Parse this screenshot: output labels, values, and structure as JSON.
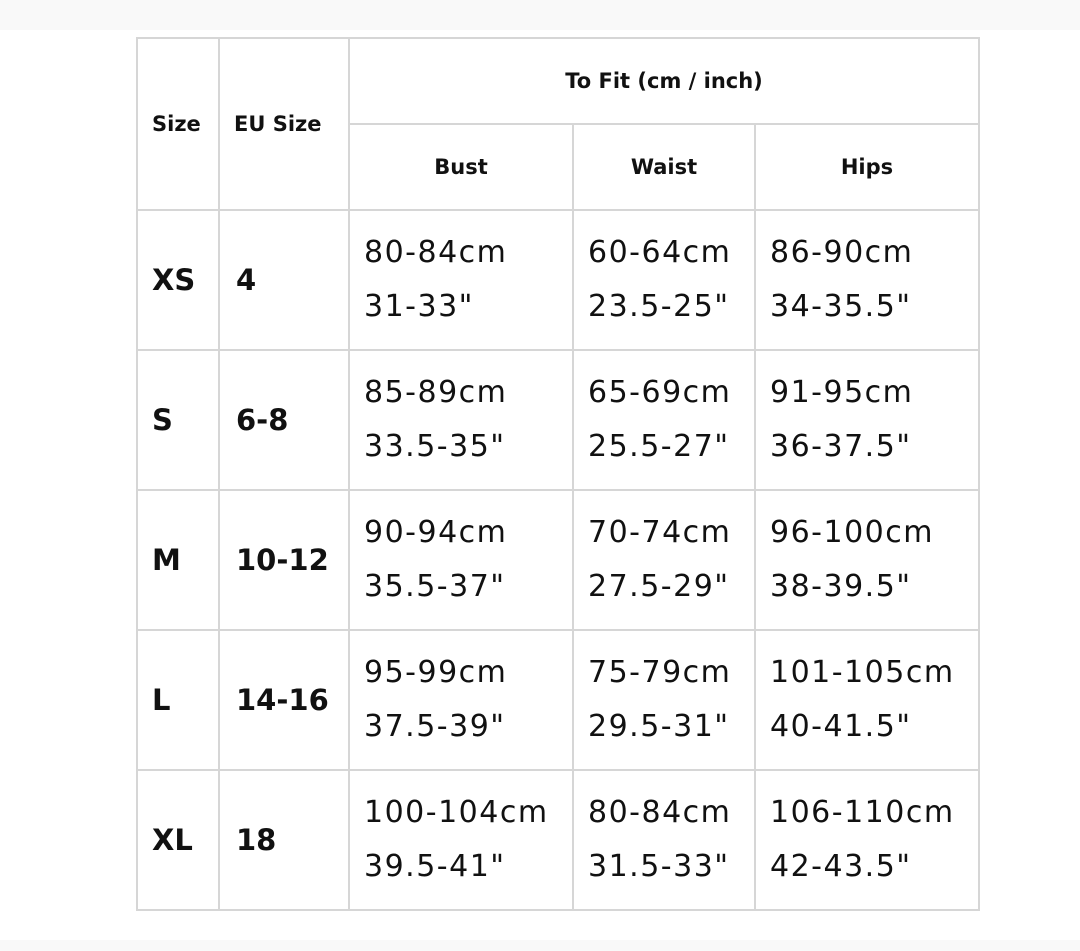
{
  "header": {
    "size": "Size",
    "eu_size": "EU Size",
    "to_fit": "To Fit (cm / inch)",
    "bust": "Bust",
    "waist": "Waist",
    "hips": "Hips"
  },
  "rows": [
    {
      "size": "XS",
      "eu": "4",
      "bust_cm": "80-84cm",
      "bust_in": "31-33\"",
      "waist_cm": "60-64cm",
      "waist_in": "23.5-25\"",
      "hips_cm": "86-90cm",
      "hips_in": "34-35.5\""
    },
    {
      "size": "S",
      "eu": "6-8",
      "bust_cm": "85-89cm",
      "bust_in": "33.5-35\"",
      "waist_cm": "65-69cm",
      "waist_in": "25.5-27\"",
      "hips_cm": "91-95cm",
      "hips_in": "36-37.5\""
    },
    {
      "size": "M",
      "eu": "10-12",
      "bust_cm": "90-94cm",
      "bust_in": "35.5-37\"",
      "waist_cm": "70-74cm",
      "waist_in": "27.5-29\"",
      "hips_cm": "96-100cm",
      "hips_in": "38-39.5\""
    },
    {
      "size": "L",
      "eu": "14-16",
      "bust_cm": "95-99cm",
      "bust_in": "37.5-39\"",
      "waist_cm": "75-79cm",
      "waist_in": "29.5-31\"",
      "hips_cm": "101-105cm",
      "hips_in": "40-41.5\""
    },
    {
      "size": "XL",
      "eu": "18",
      "bust_cm": "100-104cm",
      "bust_in": "39.5-41\"",
      "waist_cm": "80-84cm",
      "waist_in": "31.5-33\"",
      "hips_cm": "106-110cm",
      "hips_in": "42-43.5\""
    }
  ]
}
